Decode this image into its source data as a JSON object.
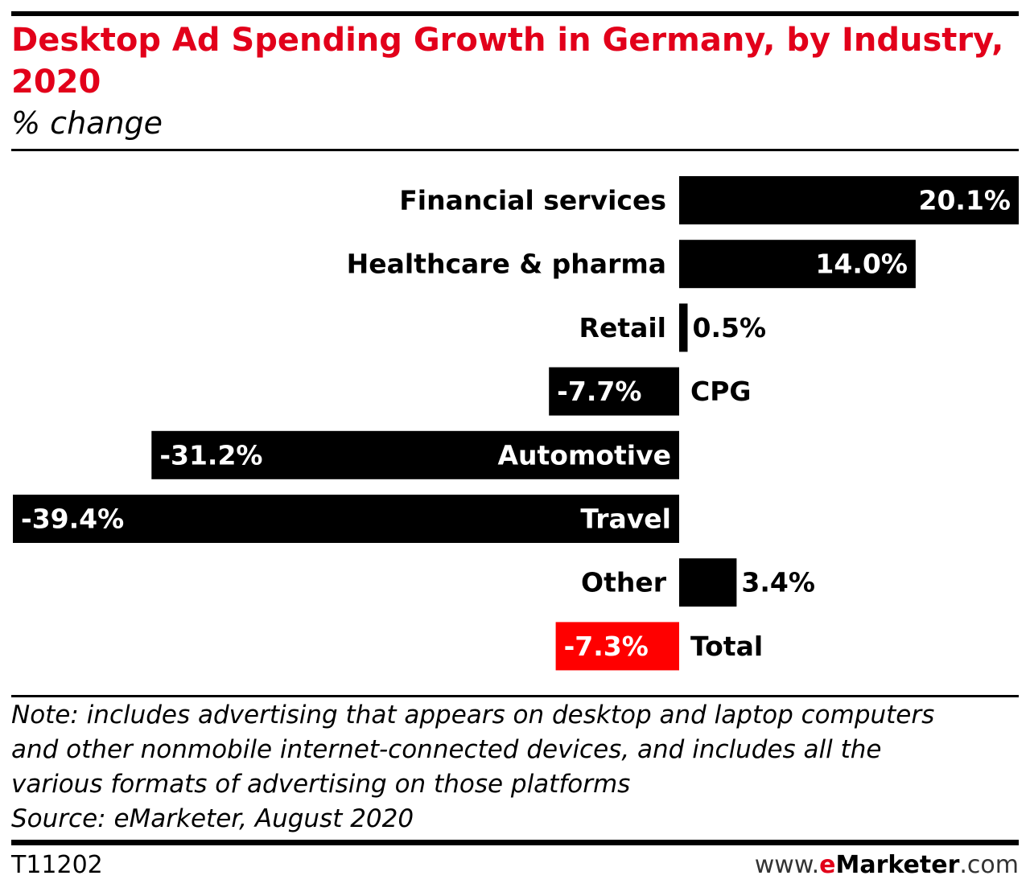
{
  "title": "Desktop Ad Spending Growth in Germany, by Industry, 2020",
  "subtitle": "% change",
  "chart_data": {
    "type": "bar",
    "orientation": "horizontal",
    "categories": [
      "Financial services",
      "Healthcare & pharma",
      "Retail",
      "CPG",
      "Automotive",
      "Travel",
      "Other",
      "Total"
    ],
    "values": [
      20.1,
      14.0,
      0.5,
      -7.7,
      -31.2,
      -39.4,
      3.4,
      -7.3
    ],
    "value_labels": [
      "20.1%",
      "14.0%",
      "0.5%",
      "-7.7%",
      "-31.2%",
      "-39.4%",
      "3.4%",
      "-7.3%"
    ],
    "highlight_category": "Total",
    "colors": {
      "bar": "#000000",
      "highlight": "#ff0000"
    },
    "xlim": [
      -39.4,
      20.1
    ],
    "unit": "%",
    "xlabel": "",
    "ylabel": "",
    "grid": false,
    "legend": "none"
  },
  "note_lines": [
    "Note: includes advertising that appears on desktop and laptop computers",
    "and other nonmobile internet-connected devices, and includes all the",
    "various formats of advertising on those platforms",
    "Source: eMarketer, August 2020"
  ],
  "footer": {
    "code": "T11202",
    "brand": {
      "prefix": "www.",
      "e": "e",
      "name": "Marketer",
      "suffix": ".com"
    }
  },
  "colors": {
    "title": "#e2001a",
    "rule": "#000000"
  }
}
